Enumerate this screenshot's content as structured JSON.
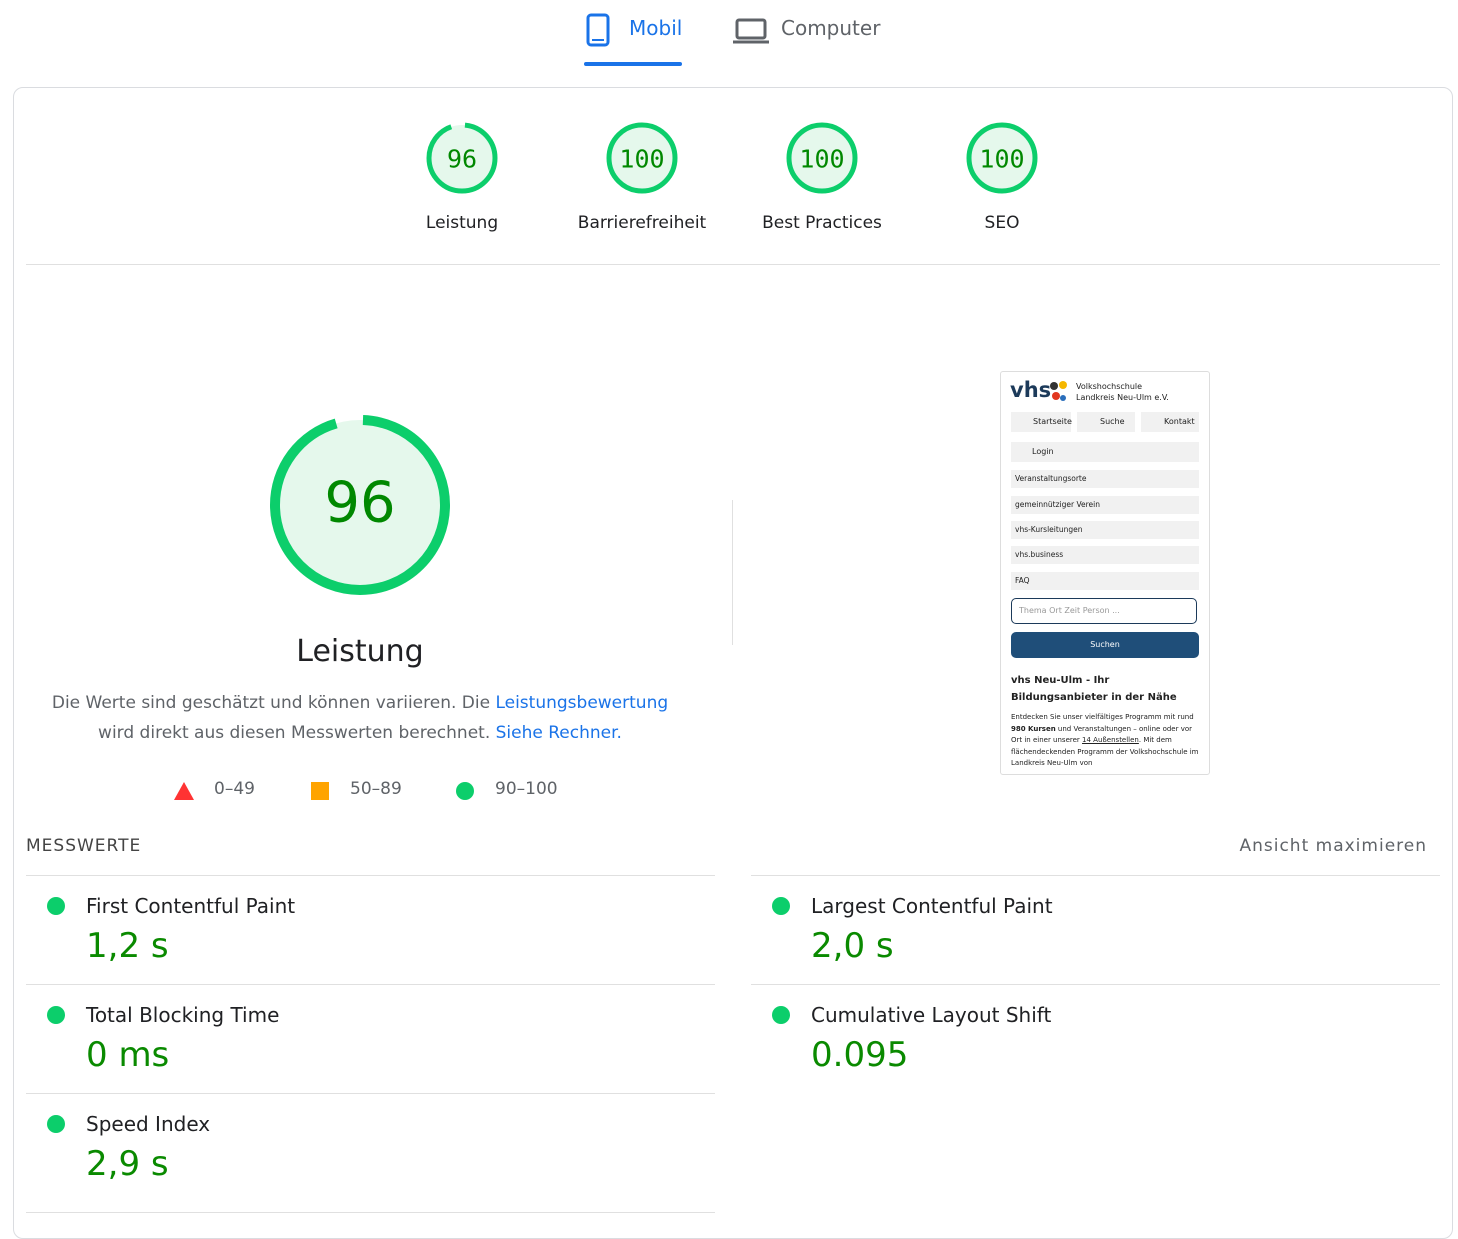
{
  "tabs": [
    "Mobil",
    "Computer"
  ],
  "scores": [
    {
      "value": 96,
      "label": "Leistung"
    },
    {
      "value": 100,
      "label": "Barrierefreiheit"
    },
    {
      "value": 100,
      "label": "Best Practices"
    },
    {
      "value": 100,
      "label": "SEO"
    }
  ],
  "main": {
    "score": 96,
    "title": "Leistung",
    "description": [
      "Die Werte sind geschätzt und können variieren. Die ",
      "Leistungsbewertung",
      " wird direkt aus diesen Messwerten berechnet. ",
      "Siehe Rechner."
    ]
  },
  "legend": [
    "0–49",
    "50–89",
    "90–100"
  ],
  "preview": {
    "logo": "vhs",
    "org_line1": "Volkshochschule",
    "org_line2": "Landkreis Neu-Ulm e.V.",
    "nav": [
      "Startseite",
      "Suche",
      "Kontakt"
    ],
    "login": "Login",
    "menu": [
      "Veranstaltungsorte",
      "gemeinnütziger Verein",
      "vhs-Kursleitungen",
      "vhs.business",
      "FAQ"
    ],
    "search_placeholder": "Thema Ort Zeit Person ...",
    "search_button": "Suchen",
    "heading": "vhs Neu-Ulm - Ihr Bildungsanbieter in der Nähe",
    "paragraph": [
      "Entdecken Sie unser vielfältiges Programm mit rund ",
      "980 Kursen",
      " und Veranstaltungen – online oder vor Ort in einer unserer ",
      "14 Außenstellen",
      ". Mit dem flächendeckenden Programm der Volkshochschule im Landkreis Neu-Ulm von"
    ]
  },
  "metrics_header": "MESSWERTE",
  "expand": "Ansicht maximieren",
  "metrics": [
    {
      "name": "First Contentful Paint",
      "value": "1,2 s"
    },
    {
      "name": "Largest Contentful Paint",
      "value": "2,0 s"
    },
    {
      "name": "Total Blocking Time",
      "value": "0 ms"
    },
    {
      "name": "Cumulative Layout Shift",
      "value": "0.095"
    },
    {
      "name": "Speed Index",
      "value": "2,9 s"
    }
  ]
}
